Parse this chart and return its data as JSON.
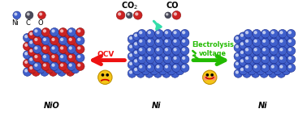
{
  "background_color": "#ffffff",
  "ni_color": "#4060cc",
  "ni_edge_color": "#1a2a88",
  "o_color": "#cc2222",
  "o_edge_color": "#881111",
  "c_color": "#4a4a5a",
  "c_edge_color": "#2a2a3a",
  "arrow_red_color": "#ee1111",
  "arrow_green_color": "#22bb00",
  "curve_arrow_color": "#33ddaa",
  "legend_labels": [
    "Ni",
    "C",
    "O"
  ],
  "nio_label": "NiO",
  "ni_label": "Ni",
  "ocv_label": "OCV",
  "electrolysis_label": "Electrolysis\nvoltage",
  "co2_label": "CO$_2$",
  "co_label": "CO",
  "emoji_color": "#f5c518",
  "emoji_edge": "#c09000",
  "figsize": [
    3.78,
    1.4
  ],
  "dpi": 100
}
